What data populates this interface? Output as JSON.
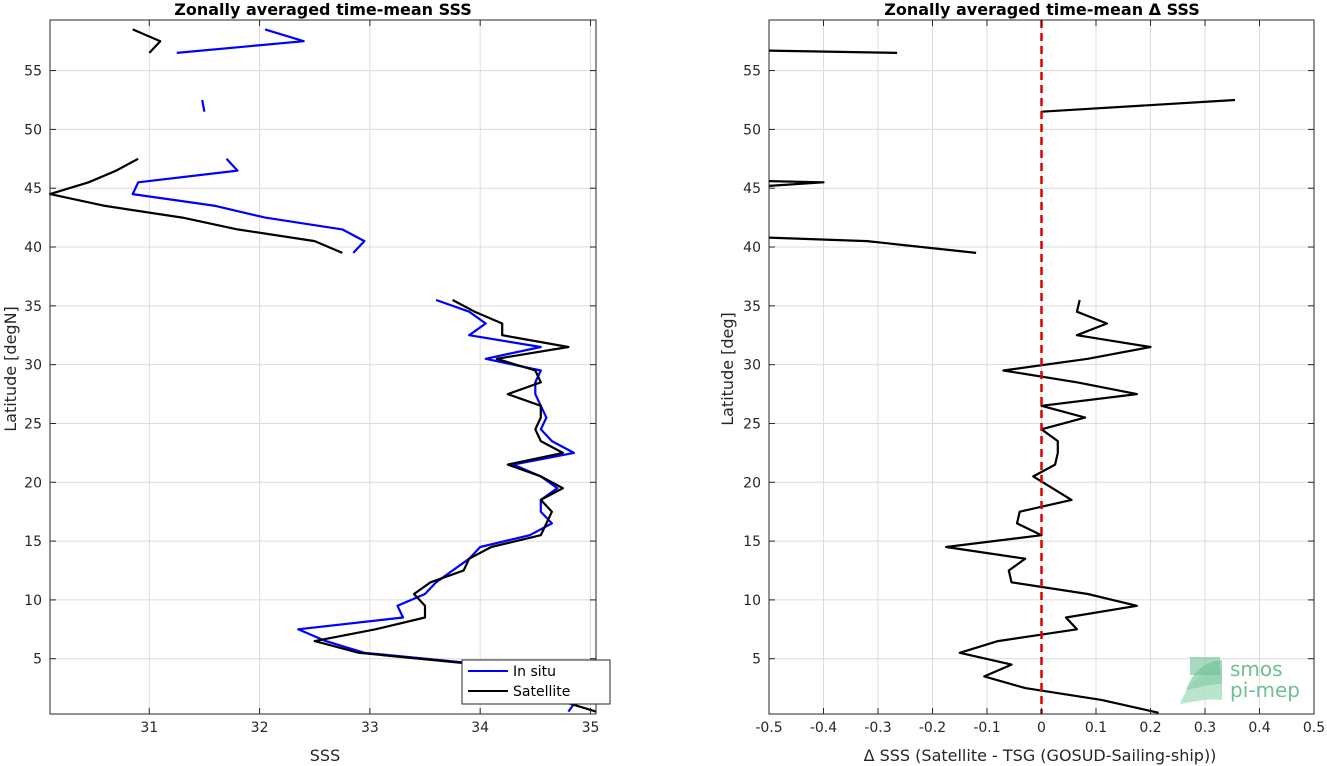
{
  "chart_data": [
    {
      "type": "line",
      "title": "Zonally averaged time-mean SSS",
      "xlabel": "SSS",
      "ylabel": "Latitude [degN]",
      "xlim": [
        30.1,
        35.05
      ],
      "ylim": [
        0.3,
        59.3
      ],
      "xticks": [
        31,
        32,
        33,
        34,
        35
      ],
      "yticks": [
        5,
        10,
        15,
        20,
        25,
        30,
        35,
        40,
        45,
        50,
        55
      ],
      "grid": true,
      "legend": {
        "position": "bottom-right",
        "entries": [
          "In situ",
          "Satellite"
        ]
      },
      "series": [
        {
          "name": "In situ",
          "color": "#0000ff",
          "segments": [
            [
              [
                32.05,
                58.5
              ],
              [
                32.4,
                57.5
              ],
              [
                31.25,
                56.5
              ]
            ],
            [
              [
                31.48,
                52.5
              ],
              [
                31.5,
                51.5
              ]
            ],
            [
              [
                31.7,
                47.5
              ],
              [
                31.8,
                46.5
              ],
              [
                30.9,
                45.5
              ],
              [
                30.85,
                44.5
              ],
              [
                31.6,
                43.5
              ],
              [
                32.05,
                42.5
              ],
              [
                32.75,
                41.5
              ],
              [
                32.95,
                40.5
              ],
              [
                32.85,
                39.5
              ]
            ],
            [
              [
                33.6,
                35.5
              ],
              [
                33.9,
                34.5
              ],
              [
                34.05,
                33.5
              ],
              [
                33.9,
                32.5
              ],
              [
                34.55,
                31.5
              ],
              [
                34.05,
                30.5
              ],
              [
                34.55,
                29.5
              ],
              [
                34.5,
                28.5
              ],
              [
                34.5,
                27.5
              ],
              [
                34.55,
                26.5
              ],
              [
                34.6,
                25.5
              ],
              [
                34.55,
                24.5
              ],
              [
                34.65,
                23.5
              ],
              [
                34.85,
                22.5
              ],
              [
                34.3,
                21.5
              ],
              [
                34.55,
                20.5
              ],
              [
                34.7,
                19.5
              ],
              [
                34.55,
                18.5
              ],
              [
                34.55,
                17.5
              ],
              [
                34.65,
                16.5
              ],
              [
                34.45,
                15.5
              ],
              [
                34.0,
                14.5
              ],
              [
                33.9,
                13.5
              ],
              [
                33.75,
                12.5
              ],
              [
                33.6,
                11.5
              ],
              [
                33.5,
                10.5
              ],
              [
                33.25,
                9.5
              ],
              [
                33.3,
                8.5
              ],
              [
                32.35,
                7.5
              ],
              [
                32.6,
                6.5
              ],
              [
                32.95,
                5.5
              ],
              [
                34.05,
                4.5
              ],
              [
                35.05,
                3.3
              ]
            ],
            [
              [
                34.9,
                1.8
              ],
              [
                34.8,
                0.5
              ]
            ]
          ]
        },
        {
          "name": "Satellite",
          "color": "#000000",
          "segments": [
            [
              [
                30.85,
                58.5
              ],
              [
                31.1,
                57.5
              ],
              [
                31.0,
                56.5
              ]
            ],
            [
              [
                30.9,
                47.5
              ],
              [
                30.7,
                46.5
              ],
              [
                30.45,
                45.5
              ],
              [
                30.1,
                44.5
              ],
              [
                30.6,
                43.5
              ],
              [
                31.3,
                42.5
              ],
              [
                31.8,
                41.5
              ],
              [
                32.5,
                40.5
              ],
              [
                32.75,
                39.5
              ]
            ],
            [
              [
                33.75,
                35.5
              ],
              [
                33.95,
                34.5
              ],
              [
                34.2,
                33.5
              ],
              [
                34.2,
                32.5
              ],
              [
                34.8,
                31.5
              ],
              [
                34.15,
                30.5
              ],
              [
                34.5,
                29.5
              ],
              [
                34.55,
                28.5
              ],
              [
                34.25,
                27.5
              ],
              [
                34.55,
                26.5
              ],
              [
                34.55,
                25.5
              ],
              [
                34.5,
                24.5
              ],
              [
                34.55,
                23.5
              ],
              [
                34.75,
                22.5
              ],
              [
                34.25,
                21.5
              ],
              [
                34.55,
                20.5
              ],
              [
                34.75,
                19.5
              ],
              [
                34.55,
                18.5
              ],
              [
                34.65,
                17.5
              ],
              [
                34.6,
                16.5
              ],
              [
                34.55,
                15.5
              ],
              [
                34.1,
                14.5
              ],
              [
                33.9,
                13.5
              ],
              [
                33.85,
                12.5
              ],
              [
                33.55,
                11.5
              ],
              [
                33.4,
                10.5
              ],
              [
                33.5,
                9.5
              ],
              [
                33.5,
                8.5
              ],
              [
                33.05,
                7.5
              ],
              [
                32.5,
                6.5
              ],
              [
                32.9,
                5.5
              ],
              [
                34.0,
                4.5
              ],
              [
                35.0,
                3.5
              ]
            ],
            [
              [
                34.6,
                1.8
              ],
              [
                35.05,
                0.5
              ]
            ]
          ]
        }
      ]
    },
    {
      "type": "line",
      "title": "Zonally averaged time-mean Δ SSS",
      "xlabel": "Δ SSS (Satellite - TSG (GOSUD-Sailing-ship))",
      "ylabel": "Latitude [deg]",
      "xlim": [
        -0.5,
        0.5
      ],
      "ylim": [
        0.3,
        59.3
      ],
      "xticks": [
        -0.5,
        -0.4,
        -0.3,
        -0.2,
        -0.1,
        0,
        0.1,
        0.2,
        0.3,
        0.4,
        0.5
      ],
      "yticks": [
        5,
        10,
        15,
        20,
        25,
        30,
        35,
        40,
        45,
        50,
        55
      ],
      "grid": true,
      "zero_line": {
        "x": 0,
        "color": "#e00000",
        "style": "dashed"
      },
      "series": [
        {
          "color": "#000000",
          "segments": [
            [
              [
                -0.5,
                56.7
              ],
              [
                -0.265,
                56.5
              ]
            ],
            [
              [
                0.0,
                51.5
              ],
              [
                0.355,
                52.5
              ]
            ],
            [
              [
                -0.5,
                45.6
              ],
              [
                -0.4,
                45.5
              ],
              [
                -0.5,
                45.2
              ]
            ],
            [
              [
                -0.5,
                40.8
              ],
              [
                -0.32,
                40.5
              ],
              [
                -0.12,
                39.5
              ]
            ],
            [
              [
                0.07,
                35.5
              ],
              [
                0.065,
                34.5
              ],
              [
                0.12,
                33.5
              ],
              [
                0.065,
                32.5
              ],
              [
                0.2,
                31.5
              ],
              [
                0.085,
                30.5
              ],
              [
                -0.07,
                29.5
              ],
              [
                0.065,
                28.5
              ],
              [
                0.175,
                27.5
              ],
              [
                0.0,
                26.5
              ],
              [
                0.08,
                25.5
              ],
              [
                0.0,
                24.5
              ],
              [
                0.03,
                23.5
              ],
              [
                0.03,
                22.5
              ],
              [
                0.025,
                21.5
              ],
              [
                -0.015,
                20.5
              ],
              [
                0.02,
                19.5
              ],
              [
                0.055,
                18.5
              ],
              [
                -0.04,
                17.5
              ],
              [
                -0.045,
                16.5
              ],
              [
                0.0,
                15.5
              ],
              [
                -0.175,
                14.5
              ],
              [
                -0.03,
                13.5
              ],
              [
                -0.06,
                12.5
              ],
              [
                -0.055,
                11.5
              ],
              [
                0.085,
                10.5
              ],
              [
                0.175,
                9.5
              ],
              [
                0.045,
                8.5
              ],
              [
                0.065,
                7.5
              ],
              [
                -0.08,
                6.5
              ],
              [
                -0.15,
                5.5
              ],
              [
                -0.055,
                4.5
              ],
              [
                -0.105,
                3.5
              ],
              [
                -0.03,
                2.5
              ],
              [
                0.11,
                1.5
              ],
              [
                0.215,
                0.4
              ]
            ]
          ]
        }
      ]
    }
  ],
  "logo": {
    "line1": "smos",
    "line2": "pi-mep"
  }
}
